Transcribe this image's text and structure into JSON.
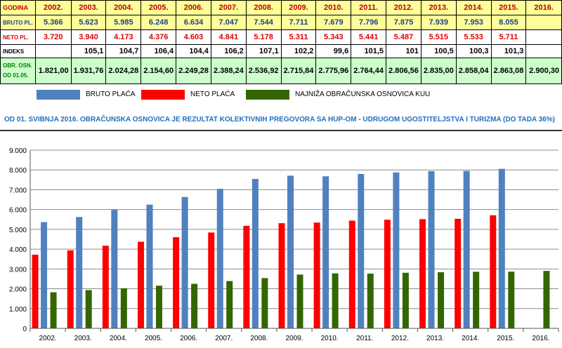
{
  "table": {
    "rows": [
      {
        "label": "GODINA",
        "cells": [
          "2002.",
          "2003.",
          "2004.",
          "2005.",
          "2006.",
          "2007.",
          "2008.",
          "2009.",
          "2010.",
          "2011.",
          "2012.",
          "2013.",
          "2014.",
          "2015.",
          "2016."
        ]
      },
      {
        "label": "BRUTO PL.",
        "cells": [
          "5.366",
          "5.623",
          "5.985",
          "6.248",
          "6.634",
          "7.047",
          "7.544",
          "7.711",
          "7.679",
          "7.796",
          "7.875",
          "7.939",
          "7.953",
          "8.055",
          ""
        ]
      },
      {
        "label": "NETO PL.",
        "cells": [
          "3.720",
          "3.940",
          "4.173",
          "4.376",
          "4.603",
          "4.841",
          "5.178",
          "5.311",
          "5.343",
          "5.441",
          "5.487",
          "5.515",
          "5.533",
          "5.711",
          ""
        ]
      },
      {
        "label": "INDEKS",
        "cells": [
          "",
          "105,1",
          "104,7",
          "106,4",
          "104,4",
          "106,2",
          "107,1",
          "102,2",
          "99,6",
          "101,5",
          "101",
          "100,5",
          "100,3",
          "101,3",
          ""
        ]
      },
      {
        "label": "OBR. OSN.",
        "label2": "OD 01.05.",
        "cells": [
          "1.821,00",
          "1.931,76",
          "2.024,28",
          "2.154,60",
          "2.249,28",
          "2.388,24",
          "2.536,92",
          "2.715,84",
          "2.775,96",
          "2.764,44",
          "2.806,56",
          "2.835,00",
          "2.858,04",
          "2.863,08",
          "2.900,30"
        ]
      }
    ]
  },
  "note": "OD 01. SVIBNJA 2016. OBRAČUNSKA OSNOVICA JE REZULTAT KOLEKTIVNIH PREGOVORA SA HUP-OM  - UDRUGOM UGOSTITELJSTVA I TURIZMA (DO TADA 36%)",
  "colors": {
    "bruto": "#4f81bd",
    "neto": "#ff0000",
    "osnovica": "#336600"
  },
  "chart_data": {
    "type": "bar",
    "categories": [
      "2002.",
      "2003.",
      "2004.",
      "2005.",
      "2006.",
      "2007.",
      "2008.",
      "2009.",
      "2010.",
      "2011.",
      "2012.",
      "2013.",
      "2014.",
      "2015.",
      "2016."
    ],
    "series": [
      {
        "name": "BRUTO PLAĆA",
        "values": [
          5366,
          5623,
          5985,
          6248,
          6634,
          7047,
          7544,
          7711,
          7679,
          7796,
          7875,
          7939,
          7953,
          8055,
          null
        ]
      },
      {
        "name": "NETO PLAĆA",
        "values": [
          3720,
          3940,
          4173,
          4376,
          4603,
          4841,
          5178,
          5311,
          5343,
          5441,
          5487,
          5515,
          5533,
          5711,
          null
        ]
      },
      {
        "name": "NAJNIŽA OBRAČUNSKA OSNOVICA KUU",
        "values": [
          1821,
          1931.76,
          2024.28,
          2154.6,
          2249.28,
          2388.24,
          2536.92,
          2715.84,
          2775.96,
          2764.44,
          2806.56,
          2835,
          2858.04,
          2863.08,
          2900.3
        ]
      }
    ],
    "ylim": [
      0,
      9000
    ],
    "yticks": [
      "0",
      "1.000",
      "2.000",
      "3.000",
      "4.000",
      "5.000",
      "6.000",
      "7.000",
      "8.000",
      "9.000"
    ],
    "grid": true,
    "legend": "top"
  }
}
